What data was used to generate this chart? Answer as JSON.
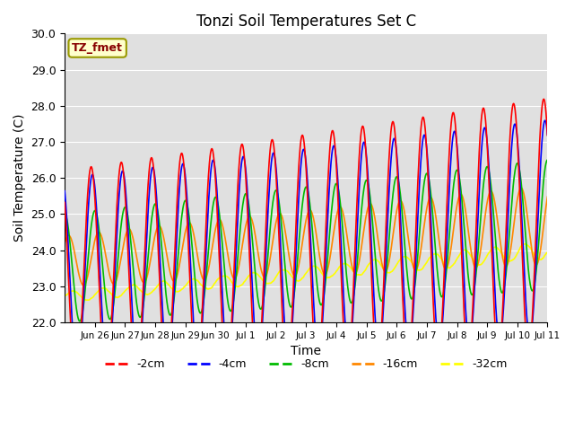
{
  "title": "Tonzi Soil Temperatures Set C",
  "xlabel": "Time",
  "ylabel": "Soil Temperature (C)",
  "ylim": [
    22.0,
    30.0
  ],
  "yticks": [
    22.0,
    23.0,
    24.0,
    25.0,
    26.0,
    27.0,
    28.0,
    29.0,
    30.0
  ],
  "bg_color": "#e0e0e0",
  "legend_label": "TZ_fmet",
  "legend_box_color": "#ffffcc",
  "legend_box_edge": "#999900",
  "series_colors": {
    "-2cm": "#ff0000",
    "-4cm": "#0000ff",
    "-8cm": "#00bb00",
    "-16cm": "#ff8800",
    "-32cm": "#ffff00"
  },
  "x_tick_labels": [
    "Jun 26",
    "Jun 27",
    "Jun 28",
    "Jun 29",
    "Jun 30",
    "Jul 1",
    "Jul 2",
    "Jul 3",
    "Jul 4",
    "Jul 5",
    "Jul 6",
    "Jul 7",
    "Jul 8",
    "Jul 9",
    "Jul 10",
    "Jul 11"
  ],
  "n_points": 1536
}
